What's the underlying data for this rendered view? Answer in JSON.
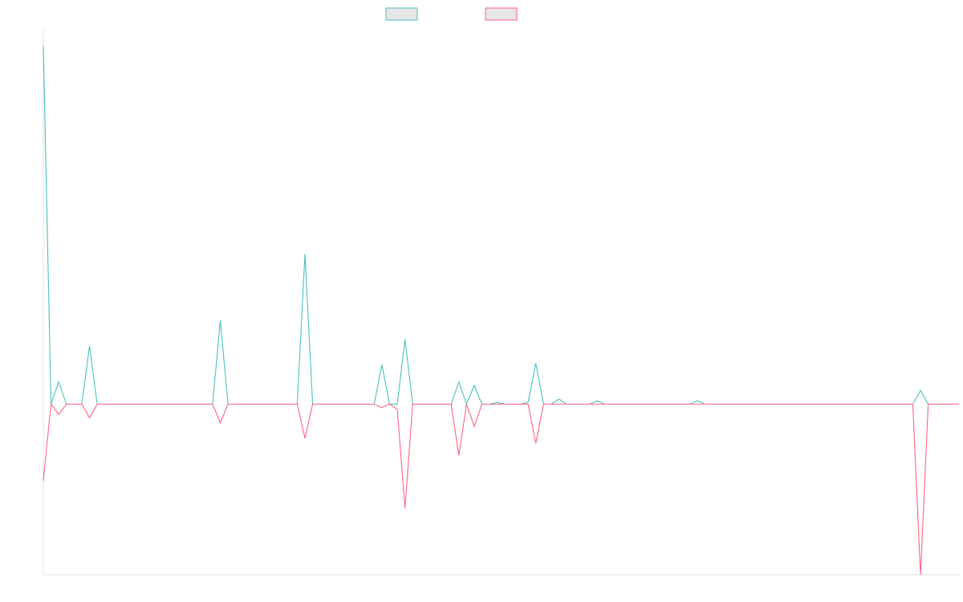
{
  "chart_data": {
    "type": "line",
    "title": "",
    "xlabel": "",
    "ylabel": "",
    "grid": false,
    "legend": "top-center",
    "x_count": 120,
    "ylim": [
      -100,
      220
    ],
    "series": [
      {
        "name": "",
        "color": "#4bc0c0",
        "fill": "#e6e6e6",
        "points": [
          [
            0,
            210
          ],
          [
            1,
            0
          ],
          [
            2,
            13
          ],
          [
            3,
            0
          ],
          [
            5,
            0
          ],
          [
            6,
            34
          ],
          [
            7,
            0
          ],
          [
            22,
            0
          ],
          [
            23,
            49
          ],
          [
            24,
            0
          ],
          [
            33,
            0
          ],
          [
            34,
            88
          ],
          [
            35,
            0
          ],
          [
            43,
            0
          ],
          [
            44,
            23
          ],
          [
            45,
            0
          ],
          [
            46,
            0
          ],
          [
            47,
            38
          ],
          [
            48,
            0
          ],
          [
            53,
            0
          ],
          [
            54,
            13
          ],
          [
            55,
            0
          ],
          [
            56,
            11
          ],
          [
            57,
            0
          ],
          [
            58,
            0
          ],
          [
            59,
            1
          ],
          [
            60,
            0
          ],
          [
            62,
            0
          ],
          [
            63,
            1
          ],
          [
            64,
            24
          ],
          [
            65,
            0
          ],
          [
            66,
            0
          ],
          [
            67,
            3
          ],
          [
            68,
            0
          ],
          [
            71,
            0
          ],
          [
            72,
            2
          ],
          [
            73,
            0
          ],
          [
            84,
            0
          ],
          [
            85,
            2
          ],
          [
            86,
            0
          ],
          [
            113,
            0
          ],
          [
            114,
            8
          ],
          [
            115,
            0
          ],
          [
            119,
            0
          ]
        ]
      },
      {
        "name": "",
        "color": "#ff6384",
        "fill": "#e6e6e6",
        "points": [
          [
            0,
            -45
          ],
          [
            1,
            0
          ],
          [
            2,
            -6
          ],
          [
            3,
            0
          ],
          [
            5,
            0
          ],
          [
            6,
            -8
          ],
          [
            7,
            0
          ],
          [
            22,
            0
          ],
          [
            23,
            -11
          ],
          [
            24,
            0
          ],
          [
            33,
            0
          ],
          [
            34,
            -20
          ],
          [
            35,
            0
          ],
          [
            43,
            0
          ],
          [
            44,
            -2
          ],
          [
            45,
            0
          ],
          [
            46,
            -3
          ],
          [
            47,
            -61
          ],
          [
            48,
            0
          ],
          [
            53,
            0
          ],
          [
            54,
            -30
          ],
          [
            55,
            0
          ],
          [
            56,
            -13
          ],
          [
            57,
            0
          ],
          [
            63,
            0
          ],
          [
            64,
            -23
          ],
          [
            65,
            0
          ],
          [
            113,
            0
          ],
          [
            114,
            -100
          ],
          [
            115,
            0
          ],
          [
            119,
            0
          ]
        ]
      }
    ]
  }
}
